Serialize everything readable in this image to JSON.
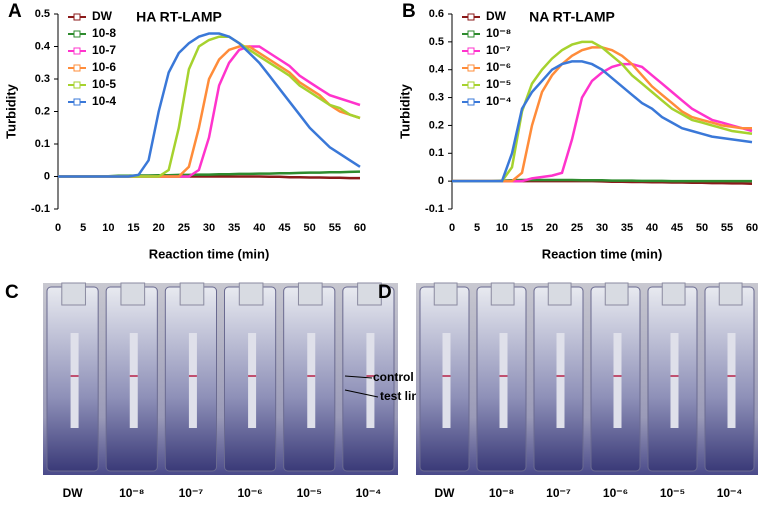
{
  "chart_data": [
    {
      "type": "line",
      "panel": "A",
      "title": "HA RT-LAMP",
      "x_label": "Reaction time (min)",
      "y_label": "Turbidity",
      "x": [
        0,
        2,
        4,
        6,
        8,
        10,
        12,
        14,
        16,
        18,
        20,
        22,
        24,
        26,
        28,
        30,
        32,
        34,
        36,
        38,
        40,
        42,
        44,
        46,
        48,
        50,
        52,
        54,
        56,
        58,
        60
      ],
      "xlim": [
        0,
        60
      ],
      "xticks": [
        0,
        5,
        10,
        15,
        20,
        25,
        30,
        35,
        40,
        45,
        50,
        55,
        60
      ],
      "ylim": [
        -0.1,
        0.5
      ],
      "yticks": [
        -0.1,
        0,
        0.1,
        0.2,
        0.3,
        0.4,
        0.5
      ],
      "series": [
        {
          "name": "DW",
          "color": "#8b1a1a",
          "values": [
            0,
            0,
            0,
            0,
            0,
            0,
            0,
            0,
            0,
            0,
            0,
            0,
            0,
            0,
            0,
            0,
            0,
            0,
            0,
            0,
            0,
            -0.001,
            -0.001,
            -0.002,
            -0.002,
            -0.003,
            -0.003,
            -0.004,
            -0.004,
            -0.005,
            -0.005
          ]
        },
        {
          "name": "10-8",
          "color": "#2e8b2e",
          "values": [
            0,
            0,
            0,
            0,
            0.001,
            0.001,
            0.002,
            0.002,
            0.003,
            0.003,
            0.004,
            0.004,
            0.005,
            0.005,
            0.006,
            0.006,
            0.007,
            0.007,
            0.008,
            0.008,
            0.009,
            0.009,
            0.01,
            0.01,
            0.011,
            0.012,
            0.012,
            0.013,
            0.013,
            0.014,
            0.015
          ]
        },
        {
          "name": "10-7",
          "color": "#ff33cc",
          "values": [
            0,
            0,
            0,
            0,
            0,
            0,
            0,
            0,
            0,
            0,
            0,
            0,
            0,
            0,
            0.02,
            0.12,
            0.28,
            0.35,
            0.39,
            0.4,
            0.4,
            0.38,
            0.36,
            0.34,
            0.31,
            0.29,
            0.27,
            0.25,
            0.24,
            0.23,
            0.22
          ]
        },
        {
          "name": "10-6",
          "color": "#ff8c3a",
          "values": [
            0,
            0,
            0,
            0,
            0,
            0,
            0,
            0,
            0,
            0,
            0,
            0,
            0,
            0.03,
            0.15,
            0.3,
            0.36,
            0.39,
            0.4,
            0.4,
            0.38,
            0.36,
            0.34,
            0.32,
            0.29,
            0.27,
            0.25,
            0.22,
            0.2,
            0.19,
            0.18
          ]
        },
        {
          "name": "10-5",
          "color": "#a6d22e",
          "values": [
            0,
            0,
            0,
            0,
            0,
            0,
            0,
            0,
            0,
            0,
            0,
            0.02,
            0.15,
            0.33,
            0.4,
            0.42,
            0.43,
            0.43,
            0.41,
            0.39,
            0.37,
            0.35,
            0.33,
            0.31,
            0.28,
            0.26,
            0.24,
            0.22,
            0.21,
            0.19,
            0.18
          ]
        },
        {
          "name": "10-4",
          "color": "#3a78d8",
          "values": [
            0,
            0,
            0,
            0,
            0,
            0,
            0,
            0,
            0.005,
            0.05,
            0.2,
            0.32,
            0.38,
            0.41,
            0.43,
            0.44,
            0.44,
            0.43,
            0.41,
            0.38,
            0.35,
            0.31,
            0.27,
            0.23,
            0.19,
            0.15,
            0.12,
            0.09,
            0.07,
            0.05,
            0.03
          ]
        }
      ]
    },
    {
      "type": "line",
      "panel": "B",
      "title": "NA RT-LAMP",
      "x_label": "Reaction time (min)",
      "y_label": "Turbidity",
      "x": [
        0,
        2,
        4,
        6,
        8,
        10,
        12,
        14,
        16,
        18,
        20,
        22,
        24,
        26,
        28,
        30,
        32,
        34,
        36,
        38,
        40,
        42,
        44,
        46,
        48,
        50,
        52,
        54,
        56,
        58,
        60
      ],
      "xlim": [
        0,
        60
      ],
      "xticks": [
        0,
        5,
        10,
        15,
        20,
        25,
        30,
        35,
        40,
        45,
        50,
        55,
        60
      ],
      "ylim": [
        -0.1,
        0.6
      ],
      "yticks": [
        -0.1,
        0,
        0.1,
        0.2,
        0.3,
        0.4,
        0.5,
        0.6
      ],
      "series": [
        {
          "name": "DW",
          "color": "#8b1a1a",
          "values": [
            0,
            0,
            0,
            0,
            0,
            0,
            0,
            0,
            0,
            0,
            0,
            0,
            0,
            0,
            0,
            -0.001,
            -0.002,
            -0.002,
            -0.003,
            -0.003,
            -0.004,
            -0.004,
            -0.005,
            -0.005,
            -0.006,
            -0.006,
            -0.007,
            -0.007,
            -0.008,
            -0.008,
            -0.009
          ]
        },
        {
          "name": "10⁻⁸",
          "color": "#2e8b2e",
          "values": [
            0,
            0,
            0,
            0,
            0,
            0.002,
            0.003,
            0.004,
            0.004,
            0.004,
            0.004,
            0.004,
            0.004,
            0.003,
            0.003,
            0.003,
            0.002,
            0.002,
            0.002,
            0.001,
            0.001,
            0.001,
            0,
            0,
            0,
            0,
            0,
            0,
            0,
            0,
            0
          ]
        },
        {
          "name": "10⁻⁷",
          "color": "#ff33cc",
          "values": [
            0,
            0,
            0,
            0,
            0,
            0,
            0,
            0,
            0.01,
            0.015,
            0.02,
            0.03,
            0.15,
            0.3,
            0.36,
            0.39,
            0.41,
            0.42,
            0.42,
            0.41,
            0.38,
            0.35,
            0.32,
            0.29,
            0.26,
            0.24,
            0.22,
            0.21,
            0.2,
            0.19,
            0.18
          ]
        },
        {
          "name": "10⁻⁶",
          "color": "#ff8c3a",
          "values": [
            0,
            0,
            0,
            0,
            0,
            0,
            0,
            0.03,
            0.2,
            0.32,
            0.38,
            0.42,
            0.45,
            0.47,
            0.48,
            0.48,
            0.47,
            0.45,
            0.42,
            0.38,
            0.34,
            0.31,
            0.28,
            0.25,
            0.23,
            0.22,
            0.21,
            0.2,
            0.195,
            0.19,
            0.19
          ]
        },
        {
          "name": "10⁻⁵",
          "color": "#a6d22e",
          "values": [
            0,
            0,
            0,
            0,
            0,
            0,
            0.05,
            0.25,
            0.35,
            0.4,
            0.44,
            0.47,
            0.49,
            0.5,
            0.5,
            0.48,
            0.45,
            0.42,
            0.38,
            0.35,
            0.32,
            0.29,
            0.26,
            0.24,
            0.22,
            0.21,
            0.2,
            0.19,
            0.18,
            0.175,
            0.17
          ]
        },
        {
          "name": "10⁻⁴",
          "color": "#3a78d8",
          "values": [
            0,
            0,
            0,
            0,
            0,
            0,
            0.1,
            0.26,
            0.32,
            0.36,
            0.4,
            0.42,
            0.43,
            0.43,
            0.42,
            0.4,
            0.37,
            0.34,
            0.31,
            0.28,
            0.26,
            0.23,
            0.21,
            0.19,
            0.18,
            0.17,
            0.16,
            0.155,
            0.15,
            0.145,
            0.14
          ]
        }
      ]
    }
  ],
  "photos": [
    {
      "panel": "C",
      "labels": [
        "DW",
        "10⁻⁸",
        "10⁻⁷",
        "10⁻⁶",
        "10⁻⁵",
        "10⁻⁴"
      ],
      "annotations": [
        "control line",
        "test line"
      ]
    },
    {
      "panel": "D",
      "labels": [
        "DW",
        "10⁻⁸",
        "10⁻⁷",
        "10⁻⁶",
        "10⁻⁵",
        "10⁻⁴"
      ]
    }
  ]
}
